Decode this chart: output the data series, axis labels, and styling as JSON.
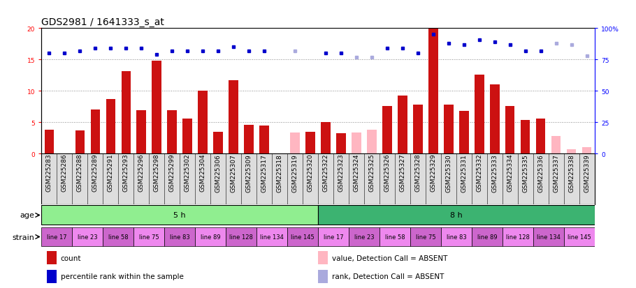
{
  "title": "GDS2981 / 1641333_s_at",
  "samples": [
    "GSM225283",
    "GSM225286",
    "GSM225288",
    "GSM225289",
    "GSM225291",
    "GSM225293",
    "GSM225296",
    "GSM225298",
    "GSM225299",
    "GSM225302",
    "GSM225304",
    "GSM225306",
    "GSM225307",
    "GSM225309",
    "GSM225317",
    "GSM225318",
    "GSM225319",
    "GSM225320",
    "GSM225322",
    "GSM225323",
    "GSM225324",
    "GSM225325",
    "GSM225326",
    "GSM225327",
    "GSM225328",
    "GSM225329",
    "GSM225330",
    "GSM225331",
    "GSM225332",
    "GSM225333",
    "GSM225334",
    "GSM225335",
    "GSM225336",
    "GSM225337",
    "GSM225338",
    "GSM225339"
  ],
  "count_values": [
    3.8,
    null,
    3.7,
    7.0,
    8.7,
    13.2,
    6.9,
    14.8,
    6.9,
    5.6,
    10.0,
    3.5,
    11.7,
    4.6,
    4.5,
    null,
    null,
    3.5,
    5.0,
    3.3,
    null,
    null,
    7.6,
    9.3,
    7.8,
    20.0,
    7.8,
    6.8,
    12.6,
    11.0,
    7.6,
    5.4,
    5.6,
    null,
    null,
    null
  ],
  "absent_count_values": [
    null,
    null,
    null,
    null,
    null,
    null,
    null,
    null,
    null,
    null,
    null,
    null,
    null,
    null,
    null,
    0.1,
    3.4,
    null,
    null,
    null,
    3.4,
    3.8,
    null,
    null,
    null,
    null,
    null,
    null,
    null,
    null,
    null,
    null,
    null,
    2.8,
    0.7,
    1.0
  ],
  "percentile_values": [
    80,
    80,
    82,
    84,
    84,
    84,
    84,
    79,
    82,
    82,
    82,
    82,
    85,
    82,
    82,
    null,
    82,
    null,
    80,
    80,
    null,
    null,
    84,
    84,
    80,
    95,
    88,
    87,
    91,
    89,
    87,
    82,
    82,
    88,
    87,
    78
  ],
  "absent_percentile_values": [
    null,
    null,
    null,
    null,
    null,
    null,
    null,
    null,
    null,
    null,
    null,
    null,
    null,
    null,
    null,
    null,
    null,
    null,
    null,
    null,
    77,
    77,
    null,
    null,
    null,
    null,
    null,
    null,
    null,
    null,
    null,
    null,
    null,
    null,
    null,
    null
  ],
  "absent_mask": [
    false,
    false,
    false,
    false,
    false,
    false,
    false,
    false,
    false,
    false,
    false,
    false,
    false,
    false,
    false,
    true,
    true,
    false,
    false,
    false,
    true,
    true,
    false,
    false,
    false,
    false,
    false,
    false,
    false,
    false,
    false,
    false,
    false,
    true,
    true,
    true
  ],
  "age_groups": [
    {
      "label": "5 h",
      "start": 0,
      "end": 18,
      "color": "#90EE90"
    },
    {
      "label": "8 h",
      "start": 18,
      "end": 36,
      "color": "#3CB371"
    }
  ],
  "strain_groups": [
    {
      "label": "line 17",
      "start": 0,
      "end": 2,
      "color": "#CC66CC"
    },
    {
      "label": "line 23",
      "start": 2,
      "end": 4,
      "color": "#EE88EE"
    },
    {
      "label": "line 58",
      "start": 4,
      "end": 6,
      "color": "#CC66CC"
    },
    {
      "label": "line 75",
      "start": 6,
      "end": 8,
      "color": "#EE88EE"
    },
    {
      "label": "line 83",
      "start": 8,
      "end": 10,
      "color": "#CC66CC"
    },
    {
      "label": "line 89",
      "start": 10,
      "end": 12,
      "color": "#EE88EE"
    },
    {
      "label": "line 128",
      "start": 12,
      "end": 14,
      "color": "#CC66CC"
    },
    {
      "label": "line 134",
      "start": 14,
      "end": 16,
      "color": "#EE88EE"
    },
    {
      "label": "line 145",
      "start": 16,
      "end": 18,
      "color": "#CC66CC"
    },
    {
      "label": "line 17",
      "start": 18,
      "end": 20,
      "color": "#EE88EE"
    },
    {
      "label": "line 23",
      "start": 20,
      "end": 22,
      "color": "#CC66CC"
    },
    {
      "label": "line 58",
      "start": 22,
      "end": 24,
      "color": "#EE88EE"
    },
    {
      "label": "line 75",
      "start": 24,
      "end": 26,
      "color": "#CC66CC"
    },
    {
      "label": "line 83",
      "start": 26,
      "end": 28,
      "color": "#EE88EE"
    },
    {
      "label": "line 89",
      "start": 28,
      "end": 30,
      "color": "#CC66CC"
    },
    {
      "label": "line 128",
      "start": 30,
      "end": 32,
      "color": "#EE88EE"
    },
    {
      "label": "line 134",
      "start": 32,
      "end": 34,
      "color": "#CC66CC"
    },
    {
      "label": "line 145",
      "start": 34,
      "end": 36,
      "color": "#EE88EE"
    }
  ],
  "ylim_left": [
    0,
    20
  ],
  "ylim_right": [
    0,
    100
  ],
  "yticks_left": [
    0,
    5,
    10,
    15,
    20
  ],
  "yticks_right": [
    0,
    25,
    50,
    75,
    100
  ],
  "bar_color": "#CC1111",
  "absent_bar_color": "#FFB6C1",
  "dot_color": "#0000CC",
  "absent_dot_color": "#AAAADD",
  "bg_color": "#FFFFFF",
  "plot_bg_color": "#FFFFFF",
  "xtick_bg_color": "#DDDDDD",
  "gridline_color": "#888888",
  "title_fontsize": 10,
  "tick_fontsize": 6.5,
  "label_fontsize": 8,
  "annot_fontsize": 8
}
